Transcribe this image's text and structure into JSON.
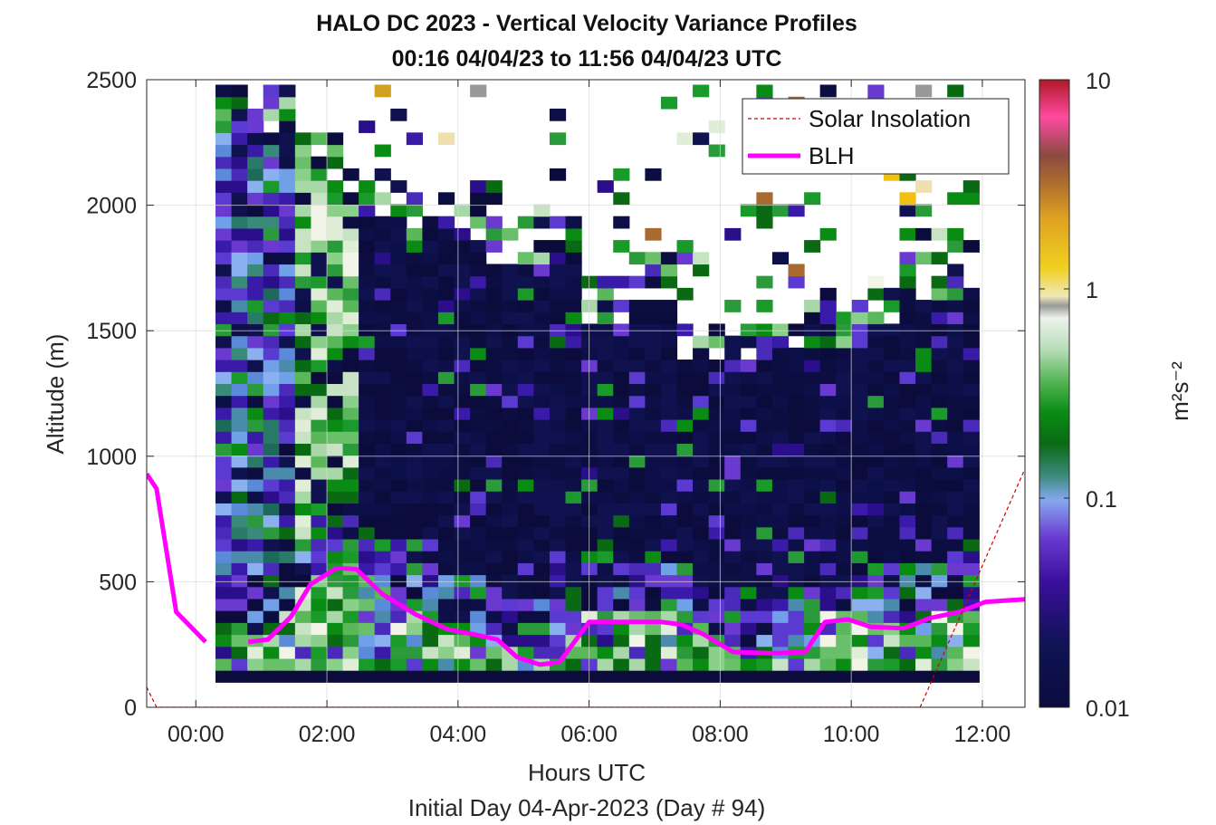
{
  "chart_data": {
    "type": "heatmap",
    "title": "HALO DC 2023 - Vertical Velocity Variance Profiles",
    "subtitle": "00:16 04/04/23 to 11:56 04/04/23  UTC",
    "xlabel": "Hours UTC",
    "xlabel2": "Initial Day 04-Apr-2023 (Day # 94)",
    "ylabel": "Altitude (m)",
    "x_ticks": [
      "00:00",
      "02:00",
      "04:00",
      "06:00",
      "08:00",
      "10:00",
      "12:00"
    ],
    "x_tick_hours": [
      0,
      2,
      4,
      6,
      8,
      10,
      12
    ],
    "xlim_hours": [
      -0.75,
      12.65
    ],
    "y_ticks": [
      "0",
      "500",
      "1000",
      "1500",
      "2000",
      "2500"
    ],
    "ylim": [
      0,
      2500
    ],
    "colorbar": {
      "label": "m²s⁻²",
      "scale": "log",
      "range": [
        0.01,
        10
      ],
      "ticks": [
        "0.01",
        "0.1",
        "1",
        "10"
      ]
    },
    "legend": {
      "placement": "top-right",
      "entries": [
        {
          "label": "Solar Insolation",
          "color": "#cc0000",
          "style": "dashed"
        },
        {
          "label": "BLH",
          "color": "#ff00ff",
          "style": "solid"
        }
      ]
    },
    "grid": true,
    "series": [
      {
        "name": "BLH",
        "x": [
          -0.75,
          -0.6,
          -0.3,
          0.15,
          0.4,
          0.8,
          1.1,
          1.45,
          1.75,
          2.15,
          2.45,
          2.85,
          3.35,
          3.85,
          4.25,
          4.6,
          4.9,
          5.25,
          5.55,
          6.0,
          6.5,
          7.1,
          7.4,
          7.75,
          8.2,
          8.8,
          9.3,
          9.6,
          9.95,
          10.3,
          10.8,
          11.2,
          11.65,
          12.05,
          12.65
        ],
        "y": [
          930,
          870,
          380,
          260,
          null,
          260,
          270,
          360,
          490,
          555,
          550,
          450,
          370,
          310,
          290,
          270,
          200,
          170,
          180,
          340,
          340,
          340,
          330,
          290,
          220,
          215,
          220,
          340,
          350,
          320,
          315,
          355,
          380,
          420,
          430
        ]
      },
      {
        "name": "Solar Insolation",
        "x": [
          -0.75,
          -0.6,
          11.05,
          12.65
        ],
        "y": [
          80,
          0,
          0,
          950
        ]
      }
    ],
    "heatmap": {
      "x_start_hour": 0.3,
      "x_end_hour": 11.95,
      "y_start_m": 100,
      "y_end_m": 2480,
      "n_cols": 48,
      "n_rows": 50
    }
  }
}
